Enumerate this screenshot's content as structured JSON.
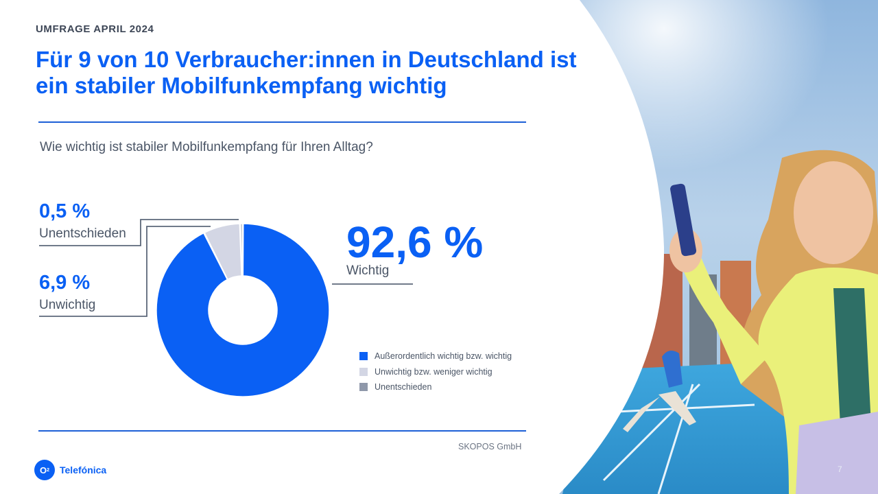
{
  "slide": {
    "kicker": "UMFRAGE  APRIL  2024",
    "headline": "Für 9 von 10 Verbraucher:innen in Deutschland ist ein stabiler Mobilfunkempfang wichtig",
    "question": "Wie wichtig ist stabiler Mobilfunkempfang  für Ihren Alltag?",
    "source": "SKOPOS GmbH",
    "page_number": "7",
    "brand": {
      "mark": "O",
      "mark_sub": "2",
      "name": "Telefónica"
    }
  },
  "callouts": {
    "undecided": {
      "value": "0,5 %",
      "label": "Unentschieden"
    },
    "unimportant": {
      "value": "6,9 %",
      "label": "Unwichtig"
    },
    "important": {
      "value": "92,6 %",
      "label": "Wichtig"
    }
  },
  "chart_data": {
    "type": "pie",
    "donut": true,
    "series": [
      {
        "name": "Außerordentlich wichtig bzw. wichtig",
        "value": 92.6,
        "color": "#0a60f4"
      },
      {
        "name": "Unwichtig bzw. weniger wichtig",
        "value": 6.9,
        "color": "#d3d6e4"
      },
      {
        "name": "Unentschieden",
        "value": 0.5,
        "color": "#8f98aa"
      }
    ],
    "legend_position": "bottom-right"
  },
  "colors": {
    "accent": "#0a60f4",
    "text": "#4a5566",
    "rule": "#1c5fd6"
  }
}
